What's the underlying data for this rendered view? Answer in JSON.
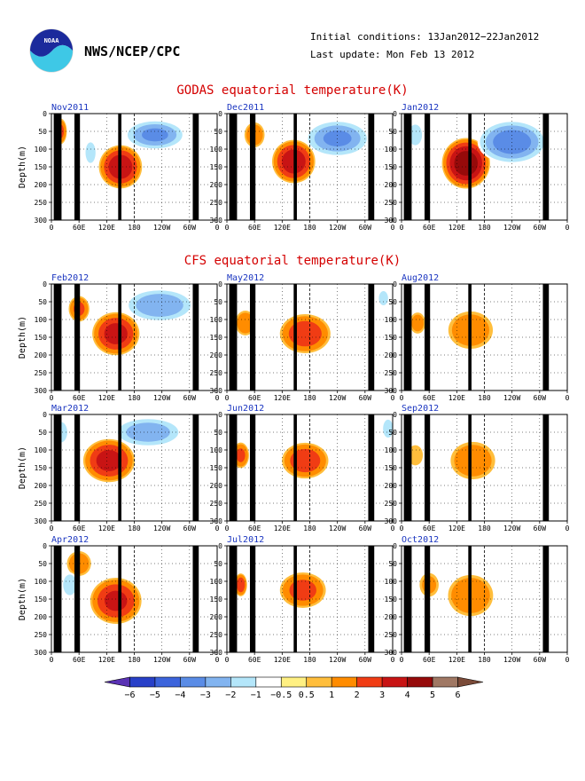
{
  "header": {
    "organization": "NWS/NCEP/CPC",
    "initial_conditions": "Initial conditions: 13Jan2012−22Jan2012",
    "last_update": "Last update: Mon Feb 13 2012"
  },
  "sections": [
    {
      "title": "GODAS equatorial temperature(K)"
    },
    {
      "title": "CFS equatorial temperature(K)"
    }
  ],
  "axes": {
    "x_ticks": [
      "0",
      "60E",
      "120E",
      "180",
      "120W",
      "60W",
      "0"
    ],
    "y_ticks": [
      "0",
      "50",
      "100",
      "150",
      "200",
      "250",
      "300"
    ],
    "y_label": "Depth(m)"
  },
  "colorbar": {
    "labels": [
      "−6",
      "−5",
      "−4",
      "−3",
      "−2",
      "−1",
      "−0.5",
      "0.5",
      "1",
      "2",
      "3",
      "4",
      "5",
      "6"
    ],
    "colors": [
      "#5a32b4",
      "#2840c8",
      "#3c64dc",
      "#5a8ce6",
      "#82b4f0",
      "#b4e6fa",
      "#ffffff",
      "#fff082",
      "#ffbe3c",
      "#ff8c00",
      "#f03c14",
      "#c81414",
      "#960a0a",
      "#a07864",
      "#7a4a38"
    ]
  },
  "chart_data": [
    {
      "type": "heatmap",
      "title": "Nov2011",
      "xlabel": "",
      "ylabel": "Depth(m)",
      "xlim": [
        0,
        360
      ],
      "ylim": [
        0,
        300
      ],
      "blobs": [
        {
          "lon": 150,
          "depth": 150,
          "anomaly": 3.5,
          "dlon": 50,
          "ddepth": 65
        },
        {
          "lon": 225,
          "depth": 60,
          "anomaly": -3,
          "dlon": 70,
          "ddepth": 45
        },
        {
          "lon": 20,
          "depth": 50,
          "anomaly": 2,
          "dlon": 15,
          "ddepth": 40
        },
        {
          "lon": 85,
          "depth": 110,
          "anomaly": -1.5,
          "dlon": 15,
          "ddepth": 40
        }
      ]
    },
    {
      "type": "heatmap",
      "title": "Dec2011",
      "xlabel": "",
      "ylabel": "Depth(m)",
      "xlim": [
        0,
        360
      ],
      "ylim": [
        0,
        300
      ],
      "blobs": [
        {
          "lon": 145,
          "depth": 135,
          "anomaly": 3.5,
          "dlon": 50,
          "ddepth": 65
        },
        {
          "lon": 240,
          "depth": 70,
          "anomaly": -3,
          "dlon": 75,
          "ddepth": 55
        },
        {
          "lon": 60,
          "depth": 60,
          "anomaly": 1.5,
          "dlon": 25,
          "ddepth": 40
        }
      ]
    },
    {
      "type": "heatmap",
      "title": "Jan2012",
      "xlabel": "",
      "ylabel": "Depth(m)",
      "xlim": [
        0,
        360
      ],
      "ylim": [
        0,
        300
      ],
      "blobs": [
        {
          "lon": 140,
          "depth": 140,
          "anomaly": 4.5,
          "dlon": 55,
          "ddepth": 75
        },
        {
          "lon": 240,
          "depth": 80,
          "anomaly": -3.5,
          "dlon": 80,
          "ddepth": 65
        },
        {
          "lon": 30,
          "depth": 60,
          "anomaly": -1.5,
          "dlon": 20,
          "ddepth": 40
        }
      ]
    },
    {
      "type": "heatmap",
      "title": "Feb2012",
      "xlabel": "",
      "ylabel": "Depth(m)",
      "xlim": [
        0,
        360
      ],
      "ylim": [
        0,
        300
      ],
      "blobs": [
        {
          "lon": 140,
          "depth": 140,
          "anomaly": 3.2,
          "dlon": 55,
          "ddepth": 65
        },
        {
          "lon": 235,
          "depth": 60,
          "anomaly": -2.8,
          "dlon": 80,
          "ddepth": 50
        },
        {
          "lon": 60,
          "depth": 70,
          "anomaly": 2,
          "dlon": 25,
          "ddepth": 40
        }
      ]
    },
    {
      "type": "heatmap",
      "title": "May2012",
      "xlabel": "",
      "ylabel": "Depth(m)",
      "xlim": [
        0,
        360
      ],
      "ylim": [
        0,
        300
      ],
      "blobs": [
        {
          "lon": 170,
          "depth": 140,
          "anomaly": 2.5,
          "dlon": 60,
          "ddepth": 60
        },
        {
          "lon": 40,
          "depth": 110,
          "anomaly": 1.5,
          "dlon": 25,
          "ddepth": 40
        },
        {
          "lon": 340,
          "depth": 40,
          "anomaly": -1.2,
          "dlon": 15,
          "ddepth": 30
        }
      ]
    },
    {
      "type": "heatmap",
      "title": "Aug2012",
      "xlabel": "",
      "ylabel": "Depth(m)",
      "xlim": [
        0,
        360
      ],
      "ylim": [
        0,
        300
      ],
      "blobs": [
        {
          "lon": 150,
          "depth": 130,
          "anomaly": 1.6,
          "dlon": 55,
          "ddepth": 60
        },
        {
          "lon": 35,
          "depth": 110,
          "anomaly": 1.2,
          "dlon": 20,
          "ddepth": 35
        }
      ]
    },
    {
      "type": "heatmap",
      "title": "Mar2012",
      "xlabel": "",
      "ylabel": "Depth(m)",
      "xlim": [
        0,
        360
      ],
      "ylim": [
        0,
        300
      ],
      "blobs": [
        {
          "lon": 125,
          "depth": 130,
          "anomaly": 3.2,
          "dlon": 60,
          "ddepth": 65
        },
        {
          "lon": 210,
          "depth": 50,
          "anomaly": -2.5,
          "dlon": 80,
          "ddepth": 45
        },
        {
          "lon": 20,
          "depth": 50,
          "anomaly": -1.5,
          "dlon": 20,
          "ddepth": 40
        }
      ]
    },
    {
      "type": "heatmap",
      "title": "Jun2012",
      "xlabel": "",
      "ylabel": "Depth(m)",
      "xlim": [
        0,
        360
      ],
      "ylim": [
        0,
        300
      ],
      "blobs": [
        {
          "lon": 170,
          "depth": 130,
          "anomaly": 2.5,
          "dlon": 55,
          "ddepth": 55
        },
        {
          "lon": 30,
          "depth": 115,
          "anomaly": 2,
          "dlon": 20,
          "ddepth": 40
        },
        {
          "lon": 350,
          "depth": 40,
          "anomaly": -1.5,
          "dlon": 15,
          "ddepth": 35
        }
      ]
    },
    {
      "type": "heatmap",
      "title": "Sep2012",
      "xlabel": "",
      "ylabel": "Depth(m)",
      "xlim": [
        0,
        360
      ],
      "ylim": [
        0,
        300
      ],
      "blobs": [
        {
          "lon": 155,
          "depth": 130,
          "anomaly": 1.6,
          "dlon": 55,
          "ddepth": 60
        },
        {
          "lon": 30,
          "depth": 115,
          "anomaly": 0.9,
          "dlon": 20,
          "ddepth": 35
        }
      ]
    },
    {
      "type": "heatmap",
      "title": "Apr2012",
      "xlabel": "",
      "ylabel": "Depth(m)",
      "xlim": [
        0,
        360
      ],
      "ylim": [
        0,
        300
      ],
      "blobs": [
        {
          "lon": 140,
          "depth": 155,
          "anomaly": 3,
          "dlon": 60,
          "ddepth": 70
        },
        {
          "lon": 60,
          "depth": 50,
          "anomaly": 1.5,
          "dlon": 30,
          "ddepth": 40
        },
        {
          "lon": 40,
          "depth": 110,
          "anomaly": -1.5,
          "dlon": 20,
          "ddepth": 40
        }
      ]
    },
    {
      "type": "heatmap",
      "title": "Jul2012",
      "xlabel": "",
      "ylabel": "Depth(m)",
      "xlim": [
        0,
        360
      ],
      "ylim": [
        0,
        300
      ],
      "blobs": [
        {
          "lon": 165,
          "depth": 125,
          "anomaly": 2.2,
          "dlon": 55,
          "ddepth": 55
        },
        {
          "lon": 30,
          "depth": 110,
          "anomaly": 2.5,
          "dlon": 15,
          "ddepth": 35
        }
      ]
    },
    {
      "type": "heatmap",
      "title": "Oct2012",
      "xlabel": "",
      "ylabel": "Depth(m)",
      "xlim": [
        0,
        360
      ],
      "ylim": [
        0,
        300
      ],
      "blobs": [
        {
          "lon": 150,
          "depth": 140,
          "anomaly": 1.8,
          "dlon": 55,
          "ddepth": 65
        },
        {
          "lon": 60,
          "depth": 110,
          "anomaly": 1,
          "dlon": 25,
          "ddepth": 40
        }
      ]
    }
  ]
}
